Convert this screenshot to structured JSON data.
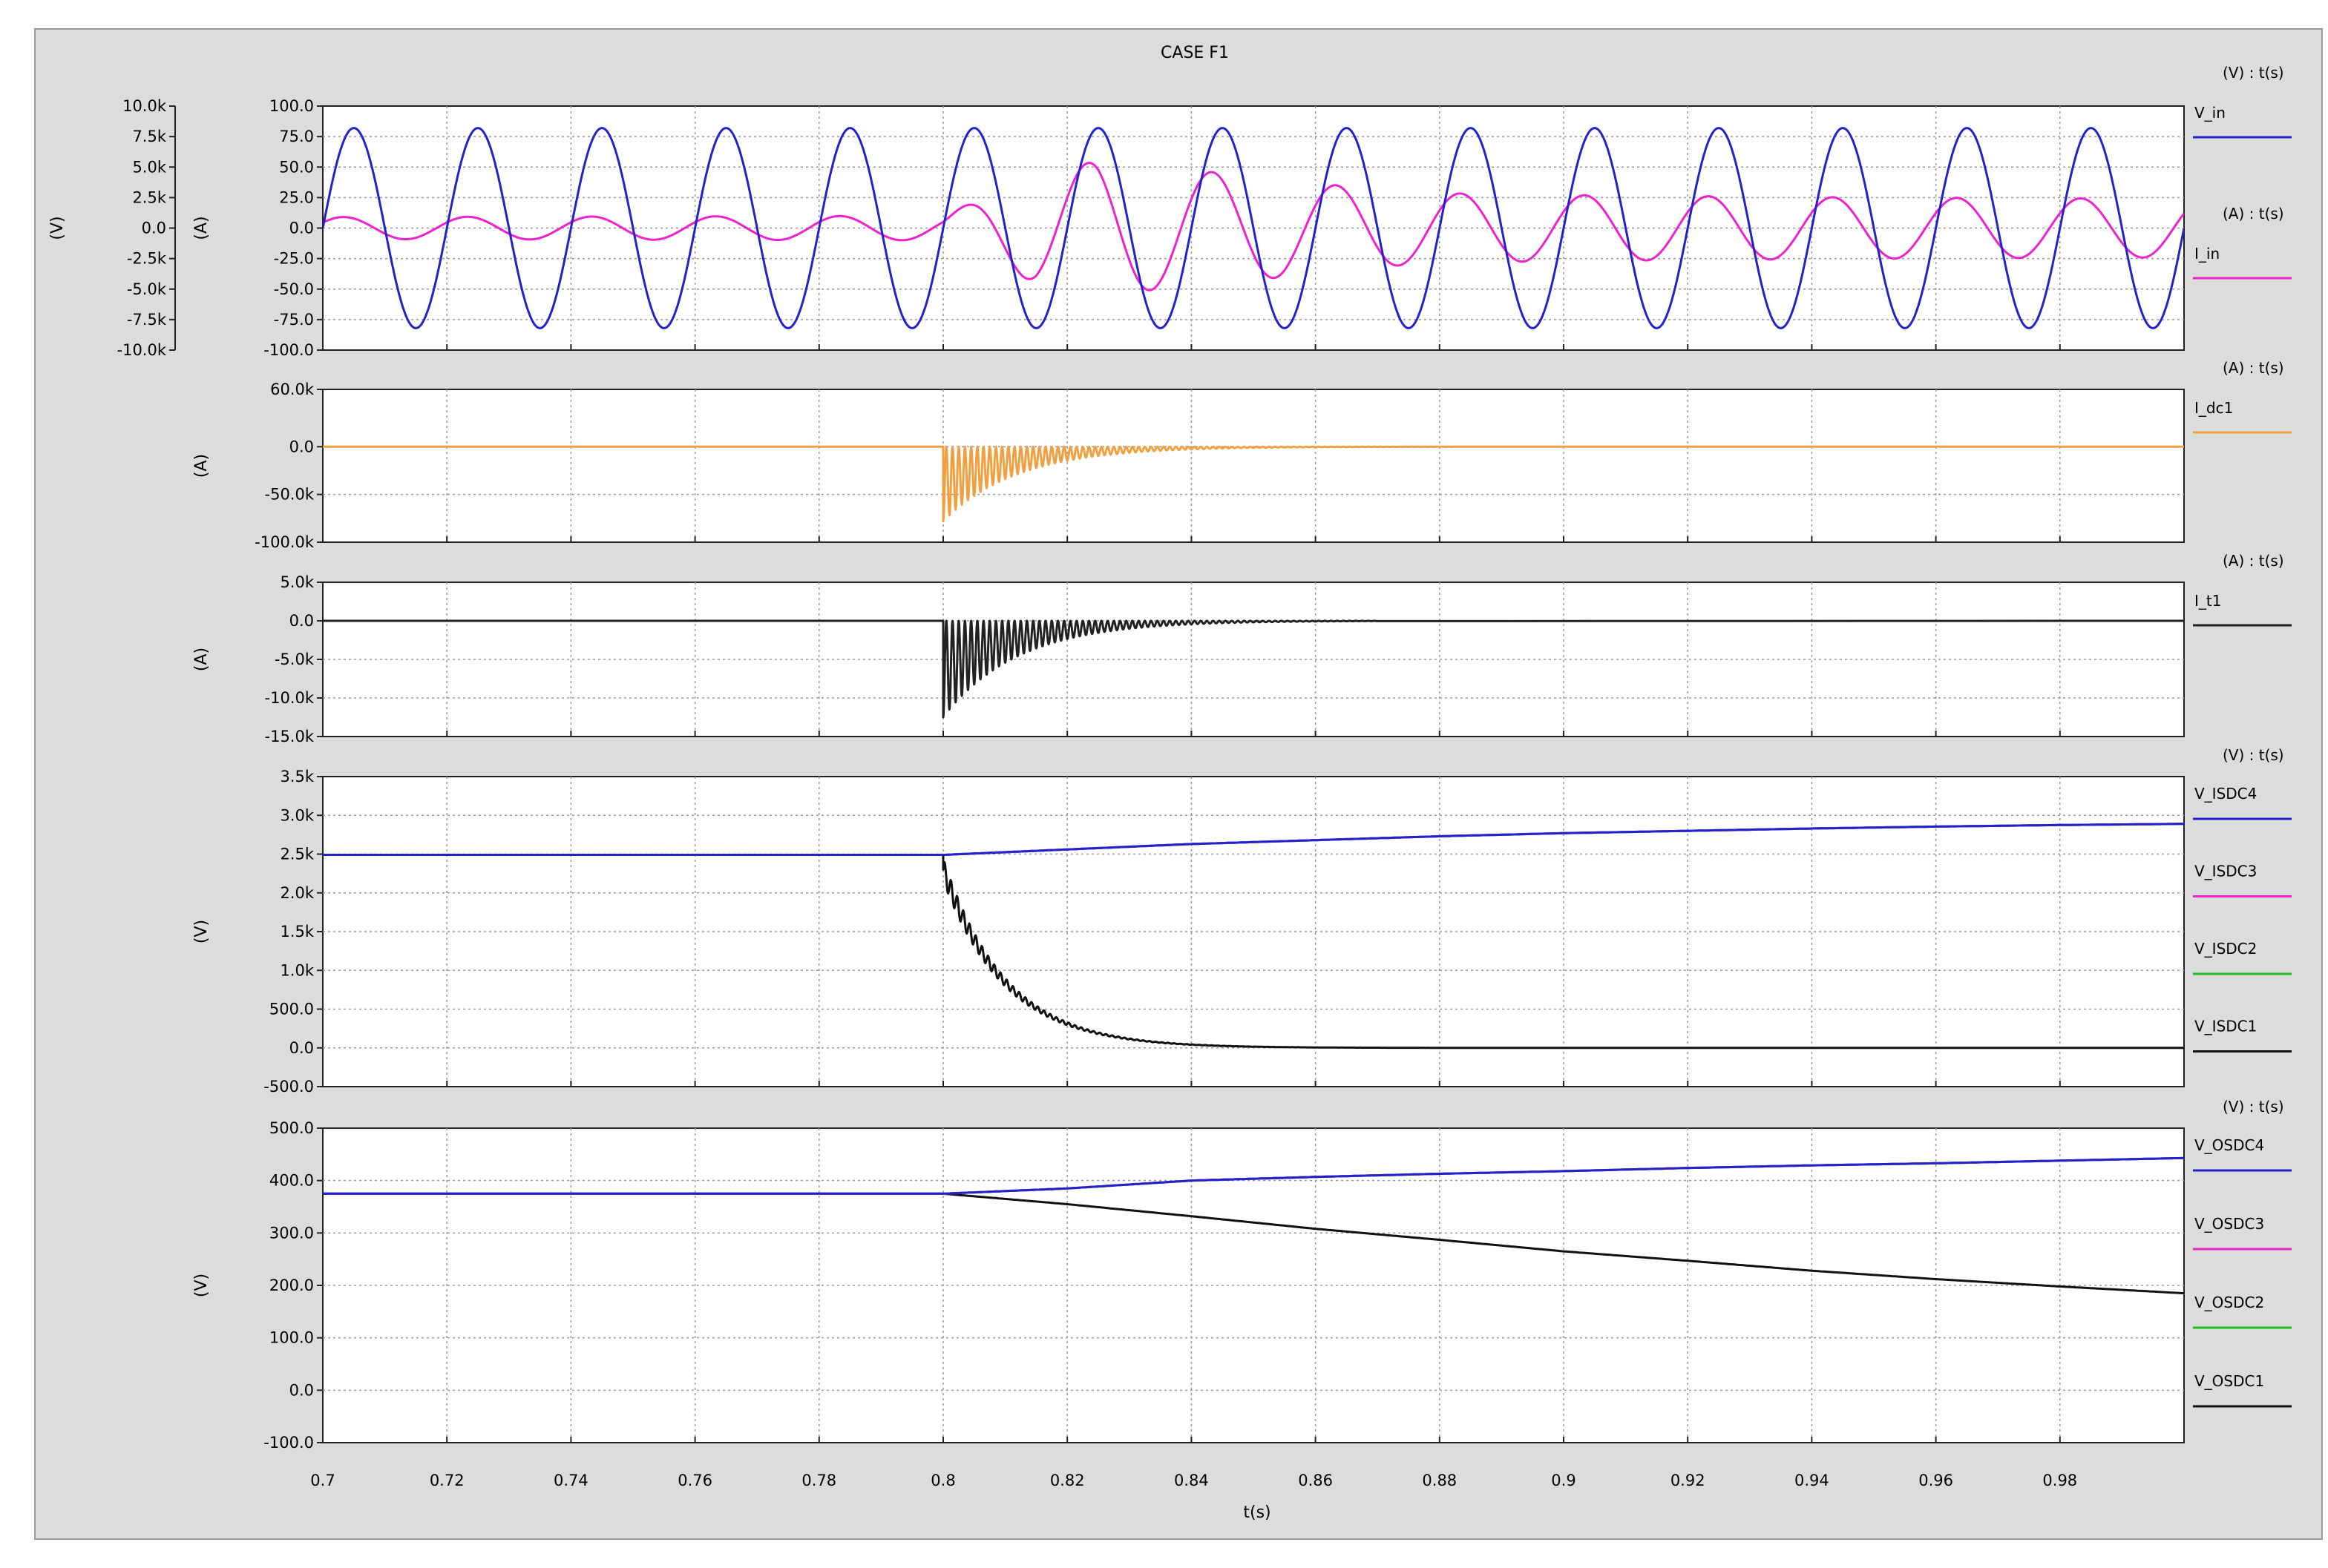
{
  "chart_data": {
    "type": "line",
    "title": "CASE F1",
    "xlabel": "t(s)",
    "xlim": [
      0.7,
      1.0
    ],
    "x_ticks": [
      "0.7",
      "0.72",
      "0.74",
      "0.76",
      "0.78",
      "0.8",
      "0.82",
      "0.84",
      "0.86",
      "0.88",
      "0.9",
      "0.92",
      "0.94",
      "0.96",
      "0.98"
    ],
    "grid": true,
    "legend_position": "right",
    "panels": [
      {
        "id": "p1",
        "ylabel": "(A)",
        "ylim": [
          -100,
          100
        ],
        "y_ticks": [
          "100.0",
          "75.0",
          "50.0",
          "25.0",
          "0.0",
          "-25.0",
          "-50.0",
          "-75.0",
          "-100.0"
        ],
        "secondary_axis": {
          "ylabel": "(V)",
          "ylim": [
            -10000,
            10000
          ],
          "y_ticks": [
            "10.0k",
            "7.5k",
            "5.0k",
            "2.5k",
            "0.0",
            "-2.5k",
            "-5.0k",
            "-7.5k",
            "-10.0k"
          ]
        },
        "series": [
          {
            "name": "V_in",
            "unit_label": "(V) : t(s)",
            "color": "#2222cc",
            "axis": "secondary",
            "kind": "sine",
            "frequency_hz": 50,
            "amplitude": 8200
          },
          {
            "name": "I_in",
            "unit_label": "(A) : t(s)",
            "color": "#ee22cc",
            "axis": "primary",
            "kind": "modulated_sine",
            "frequency_hz": 50,
            "phase_deg": 30,
            "amplitude_envelope": {
              "t": [
                0.7,
                0.8,
                0.815,
                0.825,
                0.835,
                0.845,
                0.855,
                0.865,
                0.875,
                0.885,
                0.9,
                0.95,
                1.0
              ],
              "a": [
                9,
                10,
                45,
                55,
                50,
                45,
                40,
                34,
                30,
                28,
                27,
                25,
                24
              ]
            }
          }
        ]
      },
      {
        "id": "p2",
        "ylabel": "(A)",
        "ylim": [
          -100000,
          60000
        ],
        "y_ticks": [
          "60.0k",
          "0.0",
          "-50.0k",
          "-100.0k"
        ],
        "series": [
          {
            "name": "I_dc1",
            "unit_label": "(A) : t(s)",
            "color": "#f0a040",
            "kind": "oscillating_decay",
            "t_start": 0.8,
            "value_before": 0,
            "peak": -78000,
            "tau": 0.012,
            "osc_hz": 1000
          }
        ]
      },
      {
        "id": "p3",
        "ylabel": "(A)",
        "ylim": [
          -15000,
          5000
        ],
        "y_ticks": [
          "5.0k",
          "0.0",
          "-5.0k",
          "-10.0k",
          "-15.0k"
        ],
        "series": [
          {
            "name": "I_t1",
            "unit_label": "(A) : t(s)",
            "color": "#222222",
            "kind": "oscillating_decay",
            "t_start": 0.8,
            "value_before": 0,
            "peak": -12500,
            "tau": 0.012,
            "osc_hz": 1000,
            "t_end_activity": 0.87
          }
        ]
      },
      {
        "id": "p4",
        "ylabel": "(V)",
        "ylim": [
          -500,
          3500
        ],
        "y_ticks": [
          "3.5k",
          "3.0k",
          "2.5k",
          "2.0k",
          "1.5k",
          "1.0k",
          "500.0",
          "0.0",
          "-500.0"
        ],
        "unit_label": "(V) : t(s)",
        "series": [
          {
            "name": "V_ISDC4",
            "color": "#2222cc",
            "points": [
              [
                0.7,
                2490
              ],
              [
                0.8,
                2490
              ],
              [
                0.82,
                2560
              ],
              [
                0.84,
                2630
              ],
              [
                0.86,
                2680
              ],
              [
                0.88,
                2730
              ],
              [
                0.9,
                2770
              ],
              [
                0.92,
                2800
              ],
              [
                0.94,
                2830
              ],
              [
                0.96,
                2855
              ],
              [
                0.98,
                2875
              ],
              [
                1.0,
                2890
              ]
            ]
          },
          {
            "name": "V_ISDC3",
            "color": "#ee22cc",
            "points": [
              [
                0.7,
                2490
              ],
              [
                0.8,
                2490
              ],
              [
                0.82,
                2560
              ],
              [
                0.84,
                2630
              ],
              [
                0.86,
                2680
              ],
              [
                0.88,
                2730
              ],
              [
                0.9,
                2770
              ],
              [
                0.92,
                2800
              ],
              [
                0.94,
                2830
              ],
              [
                0.96,
                2855
              ],
              [
                0.98,
                2875
              ],
              [
                1.0,
                2890
              ]
            ]
          },
          {
            "name": "V_ISDC2",
            "color": "#22bb22",
            "points": [
              [
                0.7,
                2490
              ],
              [
                0.8,
                2490
              ],
              [
                0.82,
                2560
              ],
              [
                0.84,
                2630
              ],
              [
                0.86,
                2680
              ],
              [
                0.88,
                2730
              ],
              [
                0.9,
                2770
              ],
              [
                0.92,
                2800
              ],
              [
                0.94,
                2830
              ],
              [
                0.96,
                2855
              ],
              [
                0.98,
                2875
              ],
              [
                1.0,
                2890
              ]
            ]
          },
          {
            "name": "V_ISDC1",
            "color": "#111111",
            "kind": "decay_after",
            "t_start": 0.8,
            "value_before": 2490,
            "start_value": 2300,
            "end_value": 0,
            "tau": 0.01,
            "ripple": 150
          }
        ]
      },
      {
        "id": "p5",
        "ylabel": "(V)",
        "ylim": [
          -100,
          500
        ],
        "y_ticks": [
          "500.0",
          "400.0",
          "300.0",
          "200.0",
          "100.0",
          "0.0",
          "-100.0"
        ],
        "unit_label": "(V) : t(s)",
        "series": [
          {
            "name": "V_OSDC4",
            "color": "#2222cc",
            "points": [
              [
                0.7,
                375
              ],
              [
                0.8,
                375
              ],
              [
                0.82,
                385
              ],
              [
                0.84,
                400
              ],
              [
                0.86,
                407
              ],
              [
                0.88,
                413
              ],
              [
                0.9,
                418
              ],
              [
                0.92,
                424
              ],
              [
                0.94,
                429
              ],
              [
                0.96,
                433
              ],
              [
                0.98,
                438
              ],
              [
                1.0,
                443
              ]
            ]
          },
          {
            "name": "V_OSDC3",
            "color": "#ee22cc",
            "points": [
              [
                0.7,
                375
              ],
              [
                0.8,
                375
              ],
              [
                0.82,
                385
              ],
              [
                0.84,
                400
              ],
              [
                0.86,
                407
              ],
              [
                0.88,
                413
              ],
              [
                0.9,
                418
              ],
              [
                0.92,
                424
              ],
              [
                0.94,
                429
              ],
              [
                0.96,
                433
              ],
              [
                0.98,
                438
              ],
              [
                1.0,
                443
              ]
            ]
          },
          {
            "name": "V_OSDC2",
            "color": "#22bb22",
            "points": [
              [
                0.7,
                375
              ],
              [
                0.8,
                375
              ],
              [
                0.82,
                385
              ],
              [
                0.84,
                400
              ],
              [
                0.86,
                407
              ],
              [
                0.88,
                413
              ],
              [
                0.9,
                418
              ],
              [
                0.92,
                424
              ],
              [
                0.94,
                429
              ],
              [
                0.96,
                433
              ],
              [
                0.98,
                438
              ],
              [
                1.0,
                443
              ]
            ]
          },
          {
            "name": "V_OSDC1",
            "color": "#111111",
            "points": [
              [
                0.7,
                375
              ],
              [
                0.8,
                375
              ],
              [
                0.82,
                355
              ],
              [
                0.84,
                332
              ],
              [
                0.86,
                308
              ],
              [
                0.88,
                287
              ],
              [
                0.9,
                265
              ],
              [
                0.92,
                247
              ],
              [
                0.94,
                228
              ],
              [
                0.96,
                212
              ],
              [
                0.98,
                198
              ],
              [
                1.0,
                185
              ]
            ]
          }
        ]
      }
    ]
  }
}
